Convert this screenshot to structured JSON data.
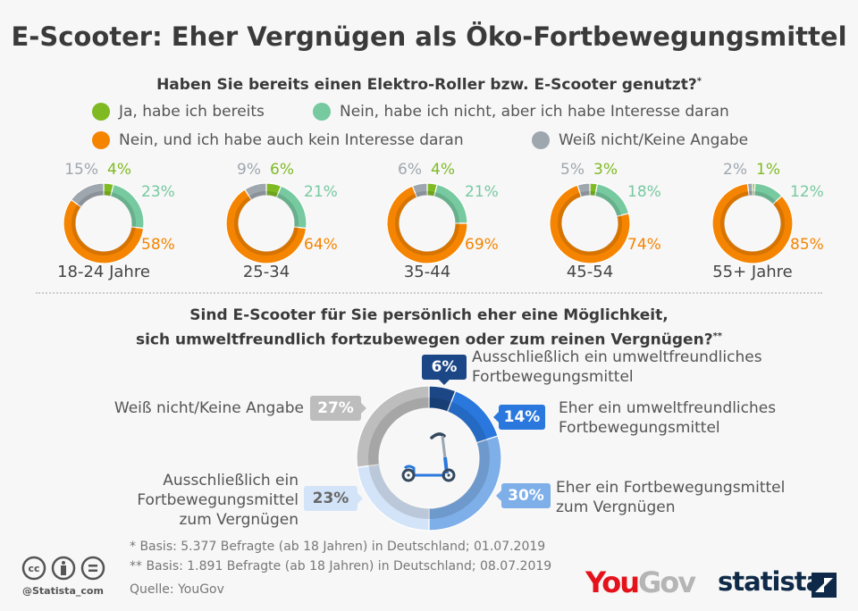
{
  "title": "E-Scooter: Eher Vergnügen als Öko-Fortbewegungsmittel",
  "chart_data": [
    {
      "type": "donut",
      "title": "Haben Sie bereits einen Elektro-Roller bzw. E-Scooter genutzt?",
      "title_mark": "*",
      "legend": [
        {
          "label": "Ja, habe ich bereits",
          "color": "#7fba23"
        },
        {
          "label": "Nein, habe ich nicht, aber ich habe Interesse daran",
          "color": "#77c9a0"
        },
        {
          "label": "Nein, und ich habe auch kein Interesse daran",
          "color": "#f58400"
        },
        {
          "label": "Weiß nicht/Keine Angabe",
          "color": "#9ea6ae"
        }
      ],
      "groups": [
        {
          "label": "18-24 Jahre",
          "values": [
            4,
            23,
            58,
            15
          ]
        },
        {
          "label": "25-34",
          "values": [
            6,
            21,
            64,
            9
          ]
        },
        {
          "label": "35-44",
          "values": [
            4,
            21,
            69,
            6
          ]
        },
        {
          "label": "45-54",
          "values": [
            3,
            18,
            74,
            5
          ]
        },
        {
          "label": "55+ Jahre",
          "values": [
            1,
            12,
            85,
            2
          ]
        }
      ]
    },
    {
      "type": "donut",
      "title_lines": [
        "Sind E-Scooter für Sie persönlich eher eine Möglichkeit,",
        "sich umweltfreundlich fortzubewegen oder zum reinen Vergnügen?"
      ],
      "title_mark": "**",
      "slices": [
        {
          "label": "Ausschließlich ein umweltfreundliches Fortbewegungsmittel",
          "lines": [
            "Ausschließlich ein umweltfreundliches",
            "Fortbewegungsmittel"
          ],
          "value": 6,
          "text": "6%",
          "color": "#1c4787"
        },
        {
          "label": "Eher ein umweltfreundliches Fortbewegungsmittel",
          "lines": [
            "Eher ein umweltfreundliches",
            "Fortbewegungsmittel"
          ],
          "value": 14,
          "text": "14%",
          "color": "#2a78dd"
        },
        {
          "label": "Eher ein Fortbewegungsmittel zum Vergnügen",
          "lines": [
            "Eher ein Fortbewegungsmittel",
            "zum Vergnügen"
          ],
          "value": 30,
          "text": "30%",
          "color": "#7eafe9"
        },
        {
          "label": "Ausschließlich ein Fortbewegungsmittel zum Vergnügen",
          "lines": [
            "Ausschließlich ein",
            "Fortbewegungsmittel",
            "zum Vergnügen"
          ],
          "value": 23,
          "text": "23%",
          "color": "#d4e4f8"
        },
        {
          "label": "Weiß nicht/Keine Angabe",
          "lines": [
            "Weiß nicht/Keine Angabe"
          ],
          "value": 27,
          "text": "27%",
          "color": "#bdbdbd"
        }
      ]
    }
  ],
  "footer": {
    "note1": "*   Basis: 5.377 Befragte (ab 18 Jahren) in Deutschland; 01.07.2019",
    "note2": "** Basis: 1.891 Befragte (ab 18 Jahren) in Deutschland; 08.07.2019",
    "source": "Quelle: YouGov",
    "handle": "@Statista_com",
    "yougov_you": "You",
    "yougov_gov": "Gov",
    "statista": "statista"
  }
}
